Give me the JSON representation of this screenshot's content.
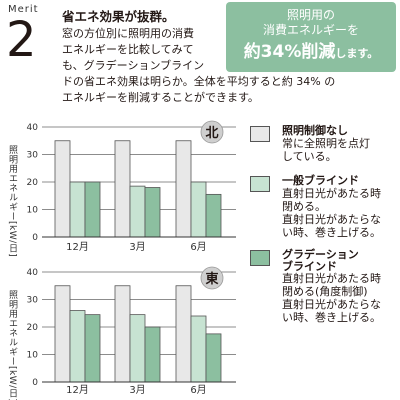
{
  "header": {
    "merit_label": "Merit",
    "merit_number": "2",
    "headline": "省エネ効果が抜群。",
    "body_lines": [
      "窓の方位別に照明用の消費",
      "エネルギーを比較してみて",
      "も、グラデーションブライン",
      "ドの省エネ効果は明らか。全体を平均すると約 34% の",
      "エネルギーを削減することができます。"
    ]
  },
  "callout": {
    "line1": "照明用の",
    "line2": "消費エネルギーを",
    "line3_main": "約34%削減",
    "line3_suffix": "します。",
    "bg_color": "#8cbfa0"
  },
  "legend": [
    {
      "title": "照明制御なし",
      "desc_lines": [
        "常に全照明を点灯",
        "している。"
      ],
      "color": "#e8e8e8"
    },
    {
      "title": "一般ブラインド",
      "desc_lines": [
        "直射日光があたる時",
        "閉める。",
        "直射日光があたらな",
        "い時、巻き上げる。"
      ],
      "color": "#c7e3d2"
    },
    {
      "title_lines": [
        "グラデーション",
        "ブラインド"
      ],
      "desc_lines": [
        "直射日光があたる時",
        "閉める(角度制御)",
        "直射日光があたらな",
        "い時、巻き上げる。"
      ],
      "color": "#8cbfa0"
    }
  ],
  "chart_data": [
    {
      "type": "bar",
      "badge": "北",
      "ylabel": "照明用エネルギー[kW/日]",
      "ylim": [
        0,
        40
      ],
      "yticks": [
        0,
        10,
        20,
        30,
        40
      ],
      "categories": [
        "12月",
        "3月",
        "6月"
      ],
      "series": [
        {
          "name": "照明制御なし",
          "values": [
            35,
            35,
            35
          ],
          "color": "#e8e8e8"
        },
        {
          "name": "一般ブラインド",
          "values": [
            20,
            18.5,
            20
          ],
          "color": "#c7e3d2"
        },
        {
          "name": "グラデーションブラインド",
          "values": [
            20,
            18,
            15.5
          ],
          "color": "#8cbfa0"
        }
      ]
    },
    {
      "type": "bar",
      "badge": "東",
      "ylabel": "照明用エネルギー[kW/日]",
      "ylim": [
        0,
        40
      ],
      "yticks": [
        0,
        10,
        20,
        30,
        40
      ],
      "categories": [
        "12月",
        "3月",
        "6月"
      ],
      "series": [
        {
          "name": "照明制御なし",
          "values": [
            35,
            35,
            35
          ],
          "color": "#e8e8e8"
        },
        {
          "name": "一般ブラインド",
          "values": [
            26,
            24.5,
            24
          ],
          "color": "#c7e3d2"
        },
        {
          "name": "グラデーションブラインド",
          "values": [
            24.5,
            20,
            17.5
          ],
          "color": "#8cbfa0"
        }
      ]
    }
  ]
}
